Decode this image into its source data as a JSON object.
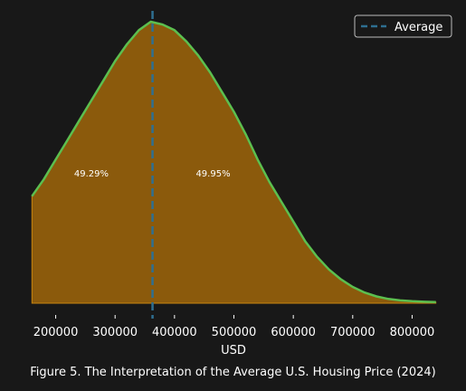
{
  "caption": "Figure 5. The Interpretation of the Average U.S. Housing Price (2024)",
  "chart_data": {
    "type": "area",
    "title": "",
    "xlabel": "USD",
    "ylabel": "",
    "xlim": [
      155000,
      845000
    ],
    "x_ticks": [
      200000,
      300000,
      400000,
      500000,
      600000,
      700000,
      800000
    ],
    "x_tick_labels": [
      "200000",
      "300000",
      "400000",
      "500000",
      "600000",
      "700000",
      "800000"
    ],
    "grid": false,
    "legend": {
      "position": "top-right",
      "entries": [
        "Average"
      ]
    },
    "series": [
      {
        "name": "",
        "curve": {
          "x": [
            160000,
            180000,
            200000,
            220000,
            240000,
            260000,
            280000,
            300000,
            320000,
            340000,
            360000,
            380000,
            400000,
            420000,
            440000,
            460000,
            480000,
            500000,
            520000,
            540000,
            560000,
            580000,
            600000,
            620000,
            640000,
            660000,
            680000,
            700000,
            720000,
            740000,
            760000,
            780000,
            800000,
            820000,
            840000
          ],
          "y": [
            0.38,
            0.44,
            0.51,
            0.58,
            0.65,
            0.72,
            0.79,
            0.86,
            0.92,
            0.97,
            1.0,
            0.99,
            0.97,
            0.93,
            0.88,
            0.82,
            0.75,
            0.68,
            0.6,
            0.51,
            0.43,
            0.36,
            0.29,
            0.22,
            0.165,
            0.12,
            0.085,
            0.058,
            0.038,
            0.024,
            0.015,
            0.01,
            0.007,
            0.005,
            0.004
          ]
        }
      },
      {
        "name": "Average",
        "vline_x": 363000
      }
    ],
    "annotations": [
      {
        "text": "49.29%",
        "x": 260000,
        "y": 0.45
      },
      {
        "text": "49.95%",
        "x": 465000,
        "y": 0.45
      }
    ],
    "colors": {
      "background": "#181818",
      "fill": "#8b5a0c",
      "fill_edge": "#c8860f",
      "curve": "#5cbf4f",
      "average": "#2e6f91",
      "text": "#ffffff"
    }
  }
}
